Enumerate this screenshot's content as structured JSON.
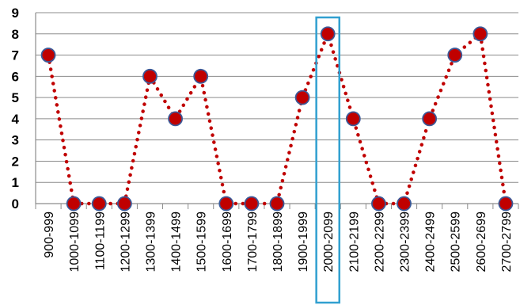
{
  "chart_data": {
    "type": "line",
    "categories": [
      "900-999",
      "1000-1099",
      "1100-1199",
      "1200-1299",
      "1300-1399",
      "1400-1499",
      "1500-1599",
      "1600-1699",
      "1700-1799",
      "1800-1899",
      "1900-1999",
      "2000-2099",
      "2100-2199",
      "2200-2299",
      "2300-2399",
      "2400-2499",
      "2500-2599",
      "2600-2699",
      "2700-2799"
    ],
    "series": [
      {
        "values": [
          7,
          0,
          0,
          0,
          6,
          4,
          6,
          0,
          0,
          0,
          5,
          8,
          4,
          0,
          0,
          4,
          7,
          8,
          0
        ]
      }
    ],
    "ylim": [
      0,
      9
    ],
    "yticks": [
      0,
      1,
      2,
      3,
      4,
      5,
      6,
      7,
      8,
      9
    ],
    "grid": true,
    "highlight_category": "2000-2099",
    "colors": {
      "line": "#c00000",
      "marker_fill": "#c00000",
      "marker_edge": "#3b5998",
      "grid": "#8c8c8c",
      "highlight_box": "#31a0d0"
    }
  }
}
